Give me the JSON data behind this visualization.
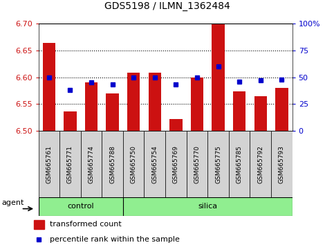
{
  "title": "GDS5198 / ILMN_1362484",
  "samples": [
    "GSM665761",
    "GSM665771",
    "GSM665774",
    "GSM665788",
    "GSM665750",
    "GSM665754",
    "GSM665769",
    "GSM665770",
    "GSM665775",
    "GSM665785",
    "GSM665792",
    "GSM665793"
  ],
  "groups": [
    "control",
    "control",
    "control",
    "control",
    "silica",
    "silica",
    "silica",
    "silica",
    "silica",
    "silica",
    "silica",
    "silica"
  ],
  "transformed_count": [
    6.663,
    6.537,
    6.59,
    6.57,
    6.608,
    6.608,
    6.522,
    6.6,
    6.7,
    6.574,
    6.565,
    6.58
  ],
  "percentile_rank": [
    50,
    38,
    45,
    43,
    50,
    50,
    43,
    50,
    60,
    46,
    47,
    48
  ],
  "ylim_left": [
    6.5,
    6.7
  ],
  "ylim_right": [
    0,
    100
  ],
  "left_ticks": [
    6.5,
    6.55,
    6.6,
    6.65,
    6.7
  ],
  "right_ticks": [
    0,
    25,
    50,
    75,
    100
  ],
  "bar_color": "#cc1111",
  "dot_color": "#0000cc",
  "control_color": "#90ee90",
  "silica_color": "#90ee90",
  "label_bg_color": "#d3d3d3",
  "agent_label": "agent",
  "legend_bar": "transformed count",
  "legend_dot": "percentile rank within the sample",
  "n_control": 4,
  "n_silica": 8
}
